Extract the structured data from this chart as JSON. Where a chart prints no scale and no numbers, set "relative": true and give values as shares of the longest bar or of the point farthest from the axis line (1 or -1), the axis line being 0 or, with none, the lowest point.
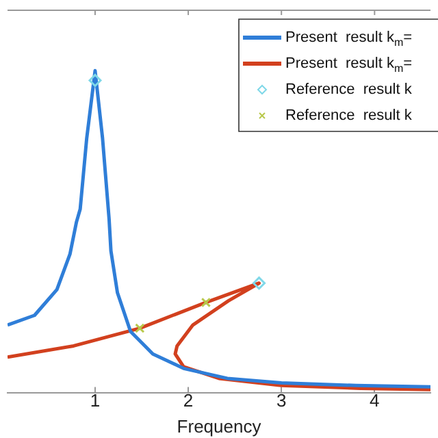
{
  "chart_data": {
    "type": "line",
    "xlabel": "Frequency",
    "relative": true,
    "xlim": [
      0.06,
      4.6
    ],
    "xticks": [
      1,
      2,
      3,
      4
    ],
    "grid": false,
    "legend": "top right",
    "series": [
      {
        "name": "Present  result k$_{m}$=",
        "color": "#2f7ed8",
        "type": "line",
        "marker": "none",
        "x": [
          0.06,
          0.35,
          0.59,
          0.73,
          0.8,
          0.84,
          0.91,
          1.0,
          1.08,
          1.15,
          1.17,
          1.24,
          1.38,
          1.62,
          1.95,
          2.42,
          3.0,
          3.8,
          4.6
        ],
        "values": [
          0.21,
          0.24,
          0.32,
          0.43,
          0.53,
          0.57,
          0.79,
          1.0,
          0.79,
          0.54,
          0.44,
          0.31,
          0.19,
          0.12,
          0.075,
          0.044,
          0.03,
          0.022,
          0.018
        ]
      },
      {
        "name": "Present  result k$_{m}$=",
        "color": "#d2401e",
        "type": "line",
        "marker": "none",
        "x": [
          0.06,
          0.77,
          1.48,
          2.19,
          2.76,
          2.43,
          2.05,
          1.88,
          1.86,
          1.95,
          2.33,
          3.0,
          3.85,
          4.6
        ],
        "values": [
          0.11,
          0.145,
          0.2,
          0.28,
          0.34,
          0.285,
          0.21,
          0.145,
          0.12,
          0.08,
          0.044,
          0.022,
          0.013,
          0.009
        ]
      },
      {
        "name": "Reference  result k",
        "color": "#7fd8e8",
        "type": "scatter",
        "marker": "diamond",
        "x": [
          1.0,
          2.76
        ],
        "values": [
          0.97,
          0.34
        ]
      },
      {
        "name": "Reference  result k",
        "color": "#b8c84a",
        "type": "scatter",
        "marker": "cross",
        "x": [
          1.48,
          2.19
        ],
        "values": [
          0.2,
          0.28
        ]
      }
    ]
  }
}
